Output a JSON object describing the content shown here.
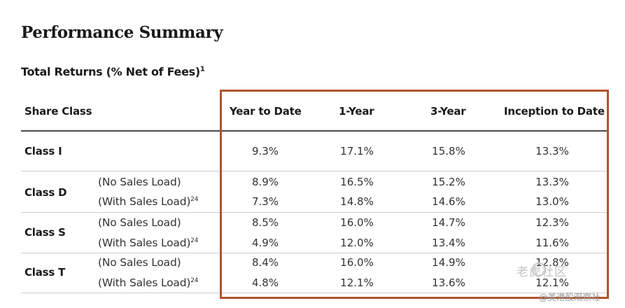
{
  "title": "Performance Summary",
  "subtitle": "Total Returns (% Net of Fees)",
  "subtitle_footnote": "1",
  "header": {
    "share_class": "Share Class",
    "cols": [
      "Year to Date",
      "1-Year",
      "3-Year",
      "Inception to Date"
    ]
  },
  "rows": [
    {
      "label": "Class I",
      "sub": "",
      "footnote": "",
      "values": [
        "9.3%",
        "17.1%",
        "15.8%",
        "13.3%"
      ]
    },
    {
      "label": "Class D",
      "sub": "(No Sales Load)",
      "footnote": "",
      "values": [
        "8.9%",
        "16.5%",
        "15.2%",
        "13.3%"
      ]
    },
    {
      "label": "",
      "sub": "(With Sales Load)",
      "footnote": "24",
      "values": [
        "7.3%",
        "14.8%",
        "14.6%",
        "13.0%"
      ]
    },
    {
      "label": "Class S",
      "sub": "(No Sales Load)",
      "footnote": "",
      "values": [
        "8.5%",
        "16.0%",
        "14.7%",
        "12.3%"
      ]
    },
    {
      "label": "",
      "sub": "(With Sales Load)",
      "footnote": "24",
      "values": [
        "4.9%",
        "12.0%",
        "13.4%",
        "11.6%"
      ]
    },
    {
      "label": "Class T",
      "sub": "(No Sales Load)",
      "footnote": "",
      "values": [
        "8.4%",
        "16.0%",
        "14.9%",
        "12.8%"
      ]
    },
    {
      "label": "",
      "sub": "(With Sales Load)",
      "footnote": "24",
      "values": [
        "4.8%",
        "12.1%",
        "13.6%",
        "12.1%"
      ]
    }
  ],
  "watermark": {
    "main": "老虎社区",
    "sub": "@美港股观察社"
  },
  "colors": {
    "highlight_border": "#b0542c",
    "rule_dark": "#4a4a4a",
    "rule_light": "#cfcfcf"
  }
}
